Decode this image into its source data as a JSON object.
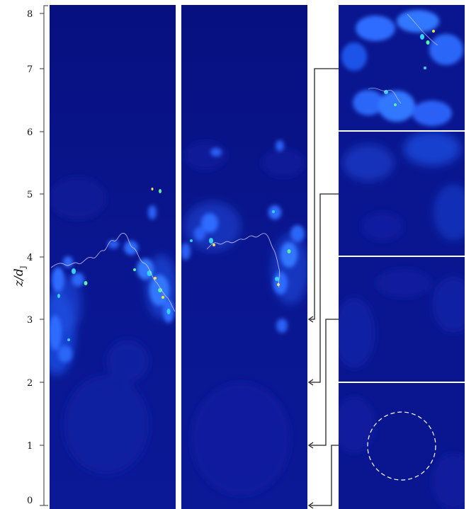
{
  "axis": {
    "ylabel_main": "z/d",
    "ylabel_subscript": "J",
    "ticks": [
      "0",
      "1",
      "2",
      "3",
      "4",
      "5",
      "6",
      "7",
      "8"
    ]
  },
  "zoom_links": [
    {
      "panel": "top",
      "from_z": 7,
      "to_z": 3
    },
    {
      "panel": "upper-middle",
      "from_z": 5,
      "to_z": 2
    },
    {
      "panel": "lower-middle",
      "from_z": 3,
      "to_z": 1
    },
    {
      "panel": "bottom",
      "from_z": 1,
      "to_z": 0
    }
  ],
  "colors": {
    "field_background": "#0a1690",
    "field_dark": "#060d78",
    "turbulence_light": "#2f6cff",
    "turbulence_cyan": "#36d2ff",
    "turbulence_green": "#5ff0a0",
    "turbulence_yellow": "#f2e24c",
    "interface_contour": "#e8d9ff",
    "separator": "#ffffff",
    "arrows": "#222222"
  },
  "annotation": {
    "dashed_circle": true,
    "dashed_circle_color": "#ffffff"
  }
}
